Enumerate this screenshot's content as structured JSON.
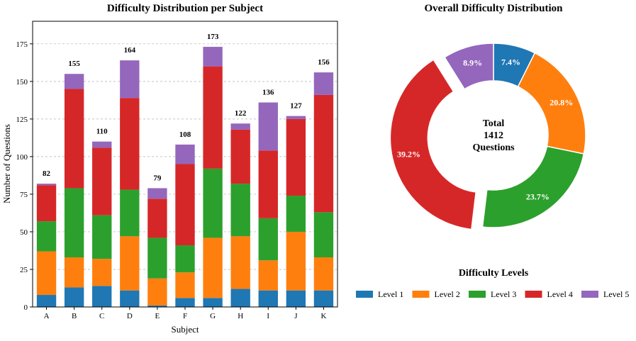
{
  "chart_data": [
    {
      "type": "bar",
      "stacked": true,
      "title": "Difficulty Distribution per Subject",
      "xlabel": "Subject",
      "ylabel": "Number of Questions",
      "ylim": [
        0,
        190
      ],
      "yticks": [
        0,
        25,
        50,
        75,
        100,
        125,
        150,
        175
      ],
      "grid": "y-dashed",
      "categories": [
        "A",
        "B",
        "C",
        "D",
        "E",
        "F",
        "G",
        "H",
        "I",
        "J",
        "K"
      ],
      "totals": [
        82,
        155,
        110,
        164,
        79,
        108,
        173,
        122,
        136,
        127,
        156
      ],
      "series": [
        {
          "name": "Level 1",
          "color": "#1f77b4",
          "values": [
            8,
            13,
            14,
            11,
            1,
            6,
            6,
            12,
            11,
            11,
            11
          ]
        },
        {
          "name": "Level 2",
          "color": "#ff7f0e",
          "values": [
            29,
            20,
            18,
            36,
            18,
            17,
            40,
            35,
            20,
            39,
            22
          ]
        },
        {
          "name": "Level 3",
          "color": "#2ca02c",
          "values": [
            20,
            46,
            29,
            31,
            27,
            18,
            46,
            35,
            28,
            24,
            30
          ]
        },
        {
          "name": "Level 4",
          "color": "#d62728",
          "values": [
            24,
            66,
            45,
            61,
            26,
            54,
            68,
            36,
            45,
            51,
            78
          ]
        },
        {
          "name": "Level 5",
          "color": "#9467bd",
          "values": [
            1,
            10,
            4,
            25,
            7,
            13,
            13,
            4,
            32,
            2,
            15
          ]
        }
      ]
    },
    {
      "type": "pie",
      "donut": true,
      "title": "Overall Difficulty Distribution",
      "center_text": [
        "Total",
        "1412",
        "Questions"
      ],
      "exploded": "Level 4",
      "slices": [
        {
          "name": "Level 1",
          "color": "#1f77b4",
          "value": 7.4,
          "label": "7.4%"
        },
        {
          "name": "Level 2",
          "color": "#ff7f0e",
          "value": 20.8,
          "label": "20.8%"
        },
        {
          "name": "Level 3",
          "color": "#2ca02c",
          "value": 23.7,
          "label": "23.7%"
        },
        {
          "name": "Level 4",
          "color": "#d62728",
          "value": 39.2,
          "label": "39.2%"
        },
        {
          "name": "Level 5",
          "color": "#9467bd",
          "value": 8.9,
          "label": "8.9%"
        }
      ]
    }
  ],
  "legend": {
    "title": "Difficulty Levels",
    "items": [
      {
        "label": "Level 1",
        "color": "#1f77b4"
      },
      {
        "label": "Level 2",
        "color": "#ff7f0e"
      },
      {
        "label": "Level 3",
        "color": "#2ca02c"
      },
      {
        "label": "Level 4",
        "color": "#d62728"
      },
      {
        "label": "Level 5",
        "color": "#9467bd"
      }
    ]
  }
}
